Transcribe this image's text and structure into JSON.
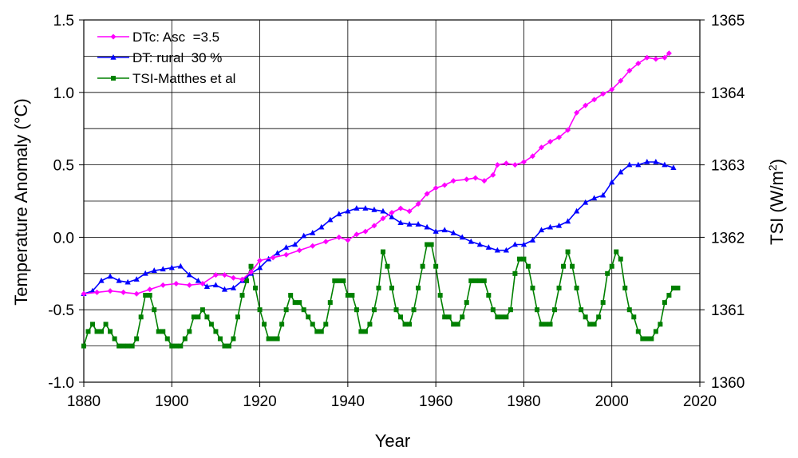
{
  "chart_data": {
    "type": "line",
    "xlabel": "Year",
    "ylabel": "Temperature Anomaly (°C)",
    "y2label_prefix": "TSI (W/m",
    "y2label_sup": "2",
    "y2label_suffix": ")",
    "xlim": [
      1880,
      2020
    ],
    "ylim": [
      -1.0,
      1.5
    ],
    "y2lim": [
      1360,
      1365
    ],
    "x_ticks": [
      1880,
      1900,
      1920,
      1940,
      1960,
      1980,
      2000,
      2020
    ],
    "x_tick_labels": [
      "1880",
      "1900",
      "1920",
      "1940",
      "1960",
      "1980",
      "2000",
      "2020"
    ],
    "y_ticks": [
      -1.0,
      -0.5,
      0.0,
      0.5,
      1.0,
      1.5
    ],
    "y_tick_labels": [
      "-1.0",
      "-0.5",
      "0.0",
      "0.5",
      "1.0",
      "1.5"
    ],
    "y2_ticks": [
      1360,
      1361,
      1362,
      1363,
      1364,
      1365
    ],
    "y2_tick_labels": [
      "1360",
      "1361",
      "1362",
      "1363",
      "1364",
      "1365"
    ],
    "grid": true,
    "legend_position": "top-left",
    "series": [
      {
        "name": "DTc: Asc  =3.5",
        "axis": "left",
        "color": "#ff00ff",
        "marker": "diamond",
        "points": [
          [
            1880,
            -0.39
          ],
          [
            1883,
            -0.38
          ],
          [
            1886,
            -0.37
          ],
          [
            1889,
            -0.38
          ],
          [
            1892,
            -0.39
          ],
          [
            1895,
            -0.36
          ],
          [
            1898,
            -0.33
          ],
          [
            1901,
            -0.32
          ],
          [
            1904,
            -0.33
          ],
          [
            1907,
            -0.32
          ],
          [
            1910,
            -0.26
          ],
          [
            1912,
            -0.26
          ],
          [
            1914,
            -0.28
          ],
          [
            1916,
            -0.29
          ],
          [
            1918,
            -0.24
          ],
          [
            1920,
            -0.16
          ],
          [
            1923,
            -0.14
          ],
          [
            1926,
            -0.12
          ],
          [
            1929,
            -0.09
          ],
          [
            1932,
            -0.06
          ],
          [
            1935,
            -0.03
          ],
          [
            1938,
            0.0
          ],
          [
            1940,
            -0.02
          ],
          [
            1942,
            0.02
          ],
          [
            1944,
            0.04
          ],
          [
            1946,
            0.08
          ],
          [
            1948,
            0.13
          ],
          [
            1950,
            0.17
          ],
          [
            1952,
            0.2
          ],
          [
            1954,
            0.18
          ],
          [
            1956,
            0.23
          ],
          [
            1958,
            0.3
          ],
          [
            1960,
            0.34
          ],
          [
            1962,
            0.36
          ],
          [
            1964,
            0.39
          ],
          [
            1967,
            0.4
          ],
          [
            1969,
            0.41
          ],
          [
            1971,
            0.39
          ],
          [
            1973,
            0.43
          ],
          [
            1974,
            0.5
          ],
          [
            1976,
            0.51
          ],
          [
            1978,
            0.5
          ],
          [
            1980,
            0.52
          ],
          [
            1982,
            0.56
          ],
          [
            1984,
            0.62
          ],
          [
            1986,
            0.66
          ],
          [
            1988,
            0.69
          ],
          [
            1990,
            0.74
          ],
          [
            1992,
            0.86
          ],
          [
            1994,
            0.91
          ],
          [
            1996,
            0.95
          ],
          [
            1998,
            0.99
          ],
          [
            2000,
            1.02
          ],
          [
            2002,
            1.08
          ],
          [
            2004,
            1.15
          ],
          [
            2006,
            1.2
          ],
          [
            2008,
            1.24
          ],
          [
            2010,
            1.23
          ],
          [
            2012,
            1.24
          ],
          [
            2013,
            1.27
          ]
        ]
      },
      {
        "name": "DT: rural  30 %",
        "axis": "left",
        "color": "#0000ff",
        "marker": "triangle",
        "points": [
          [
            1880,
            -0.39
          ],
          [
            1882,
            -0.37
          ],
          [
            1884,
            -0.3
          ],
          [
            1886,
            -0.27
          ],
          [
            1888,
            -0.3
          ],
          [
            1890,
            -0.31
          ],
          [
            1892,
            -0.29
          ],
          [
            1894,
            -0.25
          ],
          [
            1896,
            -0.23
          ],
          [
            1898,
            -0.22
          ],
          [
            1900,
            -0.21
          ],
          [
            1902,
            -0.2
          ],
          [
            1904,
            -0.26
          ],
          [
            1906,
            -0.3
          ],
          [
            1908,
            -0.34
          ],
          [
            1910,
            -0.33
          ],
          [
            1912,
            -0.36
          ],
          [
            1914,
            -0.35
          ],
          [
            1916,
            -0.3
          ],
          [
            1918,
            -0.25
          ],
          [
            1920,
            -0.21
          ],
          [
            1922,
            -0.15
          ],
          [
            1924,
            -0.11
          ],
          [
            1926,
            -0.07
          ],
          [
            1928,
            -0.05
          ],
          [
            1930,
            0.01
          ],
          [
            1932,
            0.03
          ],
          [
            1934,
            0.07
          ],
          [
            1936,
            0.12
          ],
          [
            1938,
            0.16
          ],
          [
            1940,
            0.18
          ],
          [
            1942,
            0.2
          ],
          [
            1944,
            0.2
          ],
          [
            1946,
            0.19
          ],
          [
            1948,
            0.18
          ],
          [
            1950,
            0.14
          ],
          [
            1952,
            0.1
          ],
          [
            1954,
            0.09
          ],
          [
            1956,
            0.09
          ],
          [
            1958,
            0.07
          ],
          [
            1960,
            0.04
          ],
          [
            1962,
            0.05
          ],
          [
            1964,
            0.03
          ],
          [
            1966,
            0.0
          ],
          [
            1968,
            -0.03
          ],
          [
            1970,
            -0.05
          ],
          [
            1972,
            -0.07
          ],
          [
            1974,
            -0.09
          ],
          [
            1976,
            -0.09
          ],
          [
            1978,
            -0.05
          ],
          [
            1980,
            -0.05
          ],
          [
            1982,
            -0.02
          ],
          [
            1984,
            0.05
          ],
          [
            1986,
            0.07
          ],
          [
            1988,
            0.08
          ],
          [
            1990,
            0.11
          ],
          [
            1992,
            0.18
          ],
          [
            1994,
            0.24
          ],
          [
            1996,
            0.27
          ],
          [
            1998,
            0.29
          ],
          [
            2000,
            0.38
          ],
          [
            2002,
            0.45
          ],
          [
            2004,
            0.5
          ],
          [
            2006,
            0.5
          ],
          [
            2008,
            0.52
          ],
          [
            2010,
            0.52
          ],
          [
            2012,
            0.5
          ],
          [
            2014,
            0.48
          ]
        ]
      },
      {
        "name": "TSI-Matthes et al",
        "axis": "right",
        "color": "#008000",
        "marker": "square",
        "points": [
          [
            1880,
            1360.5
          ],
          [
            1881,
            1360.7
          ],
          [
            1882,
            1360.8
          ],
          [
            1883,
            1360.7
          ],
          [
            1884,
            1360.7
          ],
          [
            1885,
            1360.8
          ],
          [
            1886,
            1360.7
          ],
          [
            1887,
            1360.6
          ],
          [
            1888,
            1360.5
          ],
          [
            1889,
            1360.5
          ],
          [
            1890,
            1360.5
          ],
          [
            1891,
            1360.5
          ],
          [
            1892,
            1360.6
          ],
          [
            1893,
            1360.9
          ],
          [
            1894,
            1361.2
          ],
          [
            1895,
            1361.2
          ],
          [
            1896,
            1361.0
          ],
          [
            1897,
            1360.7
          ],
          [
            1898,
            1360.7
          ],
          [
            1899,
            1360.6
          ],
          [
            1900,
            1360.5
          ],
          [
            1901,
            1360.5
          ],
          [
            1902,
            1360.5
          ],
          [
            1903,
            1360.6
          ],
          [
            1904,
            1360.7
          ],
          [
            1905,
            1360.9
          ],
          [
            1906,
            1360.9
          ],
          [
            1907,
            1361.0
          ],
          [
            1908,
            1360.9
          ],
          [
            1909,
            1360.8
          ],
          [
            1910,
            1360.7
          ],
          [
            1911,
            1360.6
          ],
          [
            1912,
            1360.5
          ],
          [
            1913,
            1360.5
          ],
          [
            1914,
            1360.6
          ],
          [
            1915,
            1360.9
          ],
          [
            1916,
            1361.2
          ],
          [
            1917,
            1361.4
          ],
          [
            1918,
            1361.6
          ],
          [
            1919,
            1361.3
          ],
          [
            1920,
            1361.0
          ],
          [
            1921,
            1360.8
          ],
          [
            1922,
            1360.6
          ],
          [
            1923,
            1360.6
          ],
          [
            1924,
            1360.6
          ],
          [
            1925,
            1360.8
          ],
          [
            1926,
            1361.0
          ],
          [
            1927,
            1361.2
          ],
          [
            1928,
            1361.1
          ],
          [
            1929,
            1361.1
          ],
          [
            1930,
            1361.0
          ],
          [
            1931,
            1360.9
          ],
          [
            1932,
            1360.8
          ],
          [
            1933,
            1360.7
          ],
          [
            1934,
            1360.7
          ],
          [
            1935,
            1360.8
          ],
          [
            1936,
            1361.1
          ],
          [
            1937,
            1361.4
          ],
          [
            1938,
            1361.4
          ],
          [
            1939,
            1361.4
          ],
          [
            1940,
            1361.2
          ],
          [
            1941,
            1361.2
          ],
          [
            1942,
            1361.0
          ],
          [
            1943,
            1360.7
          ],
          [
            1944,
            1360.7
          ],
          [
            1945,
            1360.8
          ],
          [
            1946,
            1361.0
          ],
          [
            1947,
            1361.3
          ],
          [
            1948,
            1361.8
          ],
          [
            1949,
            1361.6
          ],
          [
            1950,
            1361.3
          ],
          [
            1951,
            1361.0
          ],
          [
            1952,
            1360.9
          ],
          [
            1953,
            1360.8
          ],
          [
            1954,
            1360.8
          ],
          [
            1955,
            1361.0
          ],
          [
            1956,
            1361.3
          ],
          [
            1957,
            1361.6
          ],
          [
            1958,
            1361.9
          ],
          [
            1959,
            1361.9
          ],
          [
            1960,
            1361.6
          ],
          [
            1961,
            1361.2
          ],
          [
            1962,
            1360.9
          ],
          [
            1963,
            1360.9
          ],
          [
            1964,
            1360.8
          ],
          [
            1965,
            1360.8
          ],
          [
            1966,
            1360.9
          ],
          [
            1967,
            1361.1
          ],
          [
            1968,
            1361.4
          ],
          [
            1969,
            1361.4
          ],
          [
            1970,
            1361.4
          ],
          [
            1971,
            1361.4
          ],
          [
            1972,
            1361.2
          ],
          [
            1973,
            1361.0
          ],
          [
            1974,
            1360.9
          ],
          [
            1975,
            1360.9
          ],
          [
            1976,
            1360.9
          ],
          [
            1977,
            1361.0
          ],
          [
            1978,
            1361.5
          ],
          [
            1979,
            1361.7
          ],
          [
            1980,
            1361.7
          ],
          [
            1981,
            1361.6
          ],
          [
            1982,
            1361.3
          ],
          [
            1983,
            1361.0
          ],
          [
            1984,
            1360.8
          ],
          [
            1985,
            1360.8
          ],
          [
            1986,
            1360.8
          ],
          [
            1987,
            1361.0
          ],
          [
            1988,
            1361.3
          ],
          [
            1989,
            1361.6
          ],
          [
            1990,
            1361.8
          ],
          [
            1991,
            1361.6
          ],
          [
            1992,
            1361.3
          ],
          [
            1993,
            1361.0
          ],
          [
            1994,
            1360.9
          ],
          [
            1995,
            1360.8
          ],
          [
            1996,
            1360.8
          ],
          [
            1997,
            1360.9
          ],
          [
            1998,
            1361.1
          ],
          [
            1999,
            1361.5
          ],
          [
            2000,
            1361.6
          ],
          [
            2001,
            1361.8
          ],
          [
            2002,
            1361.7
          ],
          [
            2003,
            1361.3
          ],
          [
            2004,
            1361.0
          ],
          [
            2005,
            1360.9
          ],
          [
            2006,
            1360.7
          ],
          [
            2007,
            1360.6
          ],
          [
            2008,
            1360.6
          ],
          [
            2009,
            1360.6
          ],
          [
            2010,
            1360.7
          ],
          [
            2011,
            1360.8
          ],
          [
            2012,
            1361.1
          ],
          [
            2013,
            1361.2
          ],
          [
            2014,
            1361.3
          ],
          [
            2015,
            1361.3
          ]
        ]
      }
    ]
  }
}
